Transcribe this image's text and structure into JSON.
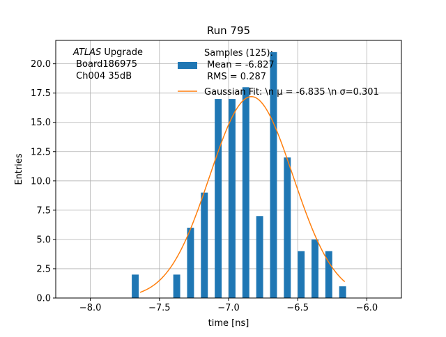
{
  "chart_data": {
    "type": "bar",
    "title": "Run 795",
    "xlabel": "time [ns]",
    "ylabel": "Entries",
    "xlim": [
      -8.25,
      -5.75
    ],
    "ylim": [
      0,
      22
    ],
    "grid": true,
    "xticks": [
      -8.0,
      -7.5,
      -7.0,
      -6.5,
      -6.0
    ],
    "xtick_labels": [
      "−8.0",
      "−7.5",
      "−7.0",
      "−6.5",
      "−6.0"
    ],
    "yticks": [
      0,
      2.5,
      5,
      7.5,
      10,
      12.5,
      15,
      17.5,
      20
    ],
    "ytick_labels": [
      "0.0",
      "2.5",
      "5.0",
      "7.5",
      "10.0",
      "12.5",
      "15.0",
      "17.5",
      "20.0"
    ],
    "histogram": {
      "bin_edges": [
        -7.75,
        -7.7,
        -7.65,
        -7.6,
        -7.55,
        -7.5,
        -7.45,
        -7.4,
        -7.35,
        -7.3,
        -7.25,
        -7.2,
        -7.15,
        -7.1,
        -7.05,
        -7.0,
        -6.95,
        -6.9,
        -6.85,
        -6.8,
        -6.75,
        -6.7,
        -6.65,
        -6.6,
        -6.55,
        -6.5,
        -6.45,
        -6.4,
        -6.35,
        -6.3,
        -6.25,
        -6.2,
        -6.15,
        -6.1
      ],
      "counts": [
        0,
        2,
        0,
        0,
        0,
        0,
        0,
        2,
        0,
        6,
        0,
        9,
        0,
        17,
        0,
        17,
        0,
        18,
        0,
        7,
        0,
        21,
        0,
        12,
        0,
        4,
        0,
        5,
        0,
        4,
        0,
        1,
        0
      ],
      "color": "#1f77b4"
    },
    "fit": {
      "mu": -6.835,
      "sigma": 0.301,
      "amplitude": 17.2,
      "x_range": [
        -7.64,
        -6.16
      ],
      "color": "#ff7f0e"
    },
    "annotation": {
      "lines": [
        " Board186975",
        " Ch004 35dB"
      ],
      "atlas_italic": "ATLAS",
      "atlas_rest": " Upgrade"
    },
    "legend": {
      "placement": "top-right",
      "hist_label_lines": [
        "Samples (125):",
        " Mean = -6.827",
        " RMS = 0.287"
      ],
      "fit_label": "Gaussian Fit: \\n μ = -6.835 \\n σ=0.301"
    }
  }
}
